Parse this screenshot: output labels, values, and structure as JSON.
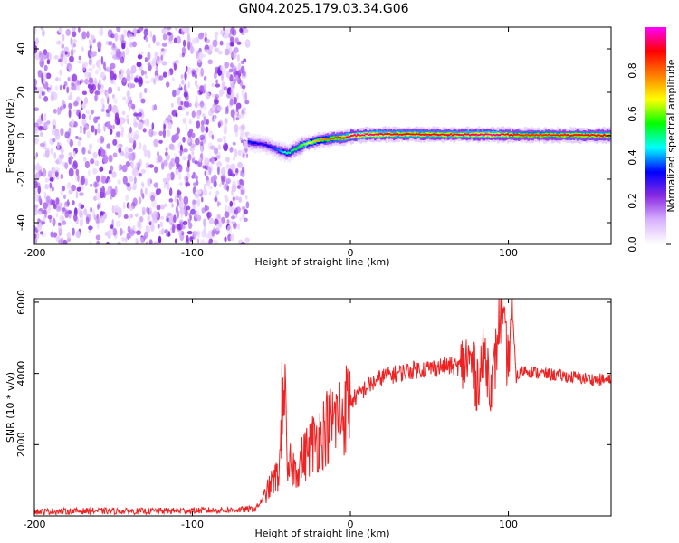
{
  "title": "GN04.2025.179.03.34.G06",
  "chart_data": [
    {
      "type": "heatmap",
      "xlabel": "Height of straight line (km)",
      "ylabel": "Frequency (Hz)",
      "xlim": [
        -200,
        165
      ],
      "ylim": [
        -50,
        50
      ],
      "xticks": [
        -200,
        -100,
        0,
        100
      ],
      "yticks": [
        -40,
        -20,
        0,
        20,
        40
      ],
      "colorbar": {
        "label": "Normalized spectral amplitude",
        "range": [
          0,
          1
        ],
        "ticks": [
          "0.0",
          "0.2",
          "0.4",
          "0.6",
          "0.8"
        ],
        "colormap": [
          "#ffffff",
          "#d9b3ff",
          "#8a2be2",
          "#0000ff",
          "#00ffff",
          "#00ff00",
          "#ffff00",
          "#ff7f00",
          "#ff0000",
          "#ff00ff"
        ]
      },
      "noise_region": {
        "x": [
          -200,
          -65
        ],
        "frequency_range": [
          -50,
          50
        ],
        "amplitude": 0.15
      },
      "ridge": {
        "x": [
          -65,
          -55,
          -45,
          -40,
          -35,
          -30,
          -25,
          -20,
          -15,
          -10,
          -5,
          0,
          10,
          30,
          60,
          90,
          110,
          165
        ],
        "frequency": [
          -3,
          -4,
          -7,
          -8,
          -6,
          -4,
          -3,
          -2,
          -1.5,
          -1,
          -1,
          0,
          0.5,
          0.7,
          0.5,
          0.5,
          0.3,
          0.2
        ],
        "peak_amplitude": [
          0.35,
          0.3,
          0.4,
          0.5,
          0.55,
          0.6,
          0.7,
          0.75,
          0.8,
          0.85,
          0.9,
          0.95,
          0.95,
          0.9,
          0.9,
          0.95,
          0.85,
          0.9
        ]
      }
    },
    {
      "type": "line",
      "xlabel": "Height of straight line (km)",
      "ylabel": "SNR (10 * v/v)",
      "xlim": [
        -200,
        165
      ],
      "ylim": [
        0,
        6100
      ],
      "xticks": [
        -200,
        -100,
        0,
        100
      ],
      "yticks": [
        2000,
        4000,
        6000
      ],
      "series": [
        {
          "color": "#ee2222",
          "x": [
            -200,
            -180,
            -160,
            -140,
            -120,
            -100,
            -80,
            -70,
            -60,
            -55,
            -50,
            -45,
            -42,
            -40,
            -38,
            -35,
            -30,
            -25,
            -20,
            -15,
            -10,
            -5,
            0,
            10,
            20,
            30,
            40,
            50,
            60,
            70,
            75,
            80,
            85,
            90,
            95,
            100,
            102,
            105,
            110,
            120,
            130,
            140,
            150,
            165
          ],
          "y": [
            120,
            130,
            140,
            130,
            140,
            150,
            160,
            170,
            200,
            500,
            900,
            1200,
            4500,
            1000,
            1400,
            1300,
            1600,
            2000,
            2200,
            2500,
            2700,
            2900,
            3200,
            3600,
            3900,
            4000,
            4100,
            4150,
            4200,
            4200,
            4400,
            3800,
            4500,
            3600,
            5800,
            4200,
            6000,
            3900,
            4100,
            4000,
            3950,
            3900,
            3850,
            3800
          ]
        }
      ]
    }
  ]
}
